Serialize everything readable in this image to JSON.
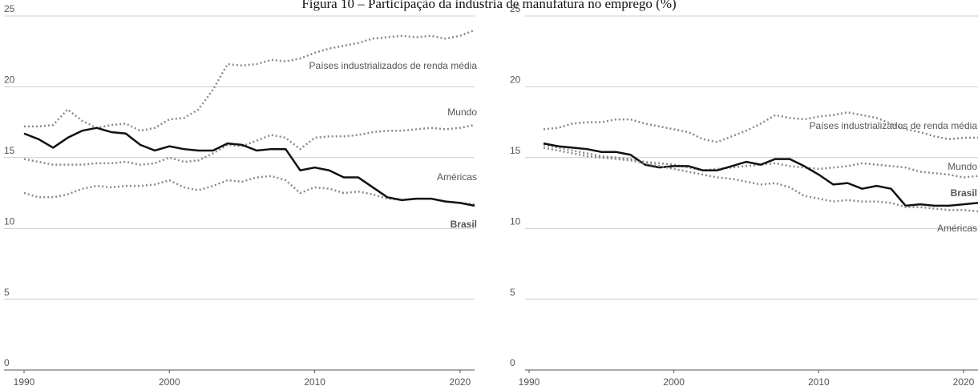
{
  "title": "Figura 10 – Participação da indústria de manufatura no emprego (%)",
  "chart_data": [
    {
      "type": "line",
      "x": [
        1990,
        1991,
        1992,
        1993,
        1994,
        1995,
        1996,
        1997,
        1998,
        1999,
        2000,
        2001,
        2002,
        2003,
        2004,
        2005,
        2006,
        2007,
        2008,
        2009,
        2010,
        2011,
        2012,
        2013,
        2014,
        2015,
        2016,
        2017,
        2018,
        2019,
        2020,
        2021
      ],
      "xlim": [
        1990,
        2021
      ],
      "xticks": [
        1990,
        2000,
        2010,
        2020
      ],
      "ylim": [
        0,
        25
      ],
      "yticks": [
        0,
        5,
        10,
        15,
        20,
        25
      ],
      "grid": true,
      "series": [
        {
          "name": "Países industrializados de renda média",
          "color": "#8a8a8a",
          "style": "dotted",
          "values": [
            17.2,
            17.2,
            17.3,
            18.4,
            17.6,
            17.1,
            17.3,
            17.4,
            16.9,
            17.1,
            17.7,
            17.8,
            18.4,
            19.8,
            21.6,
            21.5,
            21.6,
            21.9,
            21.8,
            22.0,
            22.4,
            22.7,
            22.9,
            23.1,
            23.4,
            23.5,
            23.6,
            23.5,
            23.6,
            23.4,
            23.6,
            24.0
          ]
        },
        {
          "name": "Mundo",
          "color": "#8a8a8a",
          "style": "dotted",
          "values": [
            14.9,
            14.7,
            14.5,
            14.5,
            14.5,
            14.6,
            14.6,
            14.7,
            14.5,
            14.6,
            15.0,
            14.7,
            14.8,
            15.3,
            15.9,
            15.8,
            16.2,
            16.6,
            16.4,
            15.6,
            16.4,
            16.5,
            16.5,
            16.6,
            16.8,
            16.9,
            16.9,
            17.0,
            17.1,
            17.0,
            17.1,
            17.3
          ]
        },
        {
          "name": "Américas",
          "color": "#8a8a8a",
          "style": "dotted",
          "values": [
            12.5,
            12.2,
            12.2,
            12.4,
            12.8,
            13.0,
            12.9,
            13.0,
            13.0,
            13.1,
            13.4,
            12.9,
            12.7,
            13.0,
            13.4,
            13.3,
            13.6,
            13.7,
            13.4,
            12.5,
            12.9,
            12.8,
            12.5,
            12.6,
            12.4,
            12.1,
            12.0,
            12.1,
            12.1,
            11.9,
            11.8,
            11.7
          ]
        },
        {
          "name": "Brasil",
          "color": "#111111",
          "style": "solid",
          "values": [
            16.7,
            16.3,
            15.7,
            16.4,
            16.9,
            17.1,
            16.8,
            16.7,
            15.9,
            15.5,
            15.8,
            15.6,
            15.5,
            15.5,
            16.0,
            15.9,
            15.5,
            15.6,
            15.6,
            14.1,
            14.3,
            14.1,
            13.6,
            13.6,
            12.9,
            12.2,
            12.0,
            12.1,
            12.1,
            11.9,
            11.8,
            11.6
          ]
        }
      ]
    },
    {
      "type": "line",
      "x": [
        1991,
        1992,
        1993,
        1994,
        1995,
        1996,
        1997,
        1998,
        1999,
        2000,
        2001,
        2002,
        2003,
        2004,
        2005,
        2006,
        2007,
        2008,
        2009,
        2010,
        2011,
        2012,
        2013,
        2014,
        2015,
        2016,
        2017,
        2018,
        2019,
        2020,
        2021
      ],
      "xlim": [
        1990,
        2021
      ],
      "xticks": [
        1990,
        2000,
        2010,
        2020
      ],
      "ylim": [
        0,
        25
      ],
      "yticks": [
        0,
        5,
        10,
        15,
        20,
        25
      ],
      "grid": true,
      "series": [
        {
          "name": "Países industrializados de renda média",
          "color": "#8a8a8a",
          "style": "dotted",
          "values": [
            17.0,
            17.1,
            17.4,
            17.5,
            17.5,
            17.7,
            17.7,
            17.4,
            17.2,
            17.0,
            16.8,
            16.3,
            16.1,
            16.5,
            16.9,
            17.4,
            18.0,
            17.8,
            17.7,
            17.9,
            18.0,
            18.2,
            18.0,
            17.8,
            17.4,
            17.0,
            16.8,
            16.5,
            16.3,
            16.4,
            16.4
          ]
        },
        {
          "name": "Mundo",
          "color": "#8a8a8a",
          "style": "dotted",
          "values": [
            15.9,
            15.7,
            15.5,
            15.3,
            15.1,
            15.0,
            14.9,
            14.7,
            14.6,
            14.5,
            14.3,
            14.1,
            14.2,
            14.3,
            14.4,
            14.5,
            14.6,
            14.4,
            14.3,
            14.2,
            14.3,
            14.4,
            14.6,
            14.5,
            14.4,
            14.3,
            14.0,
            13.9,
            13.8,
            13.6,
            13.7
          ]
        },
        {
          "name": "Brasil",
          "color": "#111111",
          "style": "solid",
          "values": [
            16.0,
            15.8,
            15.7,
            15.6,
            15.4,
            15.4,
            15.2,
            14.5,
            14.3,
            14.4,
            14.4,
            14.1,
            14.1,
            14.4,
            14.7,
            14.5,
            14.9,
            14.9,
            14.4,
            13.8,
            13.1,
            13.2,
            12.8,
            13.0,
            12.8,
            11.6,
            11.7,
            11.6,
            11.6,
            11.7,
            11.8
          ]
        },
        {
          "name": "Américas",
          "color": "#8a8a8a",
          "style": "dotted",
          "values": [
            15.7,
            15.5,
            15.3,
            15.1,
            15.0,
            14.9,
            14.8,
            14.6,
            14.4,
            14.2,
            14.0,
            13.8,
            13.6,
            13.5,
            13.3,
            13.1,
            13.2,
            12.9,
            12.3,
            12.1,
            11.9,
            12.0,
            11.9,
            11.9,
            11.8,
            11.5,
            11.5,
            11.4,
            11.3,
            11.3,
            11.2
          ]
        }
      ]
    }
  ]
}
